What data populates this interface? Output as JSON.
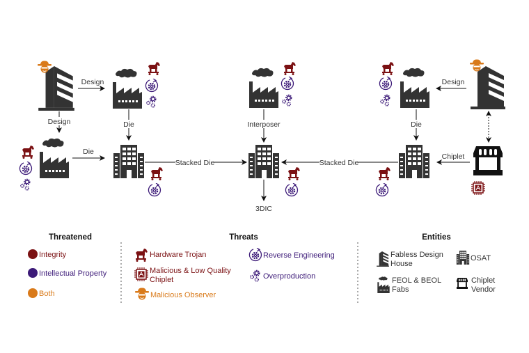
{
  "colors": {
    "integrity": "#7b1113",
    "ip": "#3c1a78",
    "both": "#d97a1a",
    "entity": "#333333"
  },
  "flow": {
    "design_top_left": "Design",
    "design_down_left": "Design",
    "die_bottom_left": "Die",
    "die_down_left": "Die",
    "stacked_die_left": "Stacked Die",
    "interposer": "Interposer",
    "output": "3DIC",
    "stacked_die_right": "Stacked Die",
    "die_down_right": "Die",
    "design_right": "Design",
    "chiplet": "Chiplet"
  },
  "legend": {
    "threatened": {
      "title": "Threatened",
      "items": [
        {
          "label": "Integrity",
          "color": "#7b1113"
        },
        {
          "label": "Intellectual Property",
          "color": "#3c1a78"
        },
        {
          "label": "Both",
          "color": "#d97a1a"
        }
      ]
    },
    "threats": {
      "title": "Threats",
      "items": [
        {
          "label": "Hardware Trojan",
          "icon": "trojan-horse-icon"
        },
        {
          "label_line1": "Malicious & Low Quality",
          "label_line2": "Chiplet",
          "icon": "chip-icon"
        },
        {
          "label": "Malicious Observer",
          "icon": "observer-icon"
        },
        {
          "label": "Reverse Engineering",
          "icon": "reverse-engineering-icon"
        },
        {
          "label": "Overproduction",
          "icon": "gears-icon"
        }
      ]
    },
    "entities": {
      "title": "Entities",
      "items": [
        {
          "label_line1": "Fabless Design",
          "label_line2": "House",
          "icon": "design-house-icon"
        },
        {
          "label": "OSAT",
          "icon": "osat-building-icon"
        },
        {
          "label_line1": "FEOL & BEOL",
          "label_line2": "Fabs",
          "icon": "factory-icon"
        },
        {
          "label_line1": "Chiplet",
          "label_line2": "Vendor",
          "icon": "store-icon"
        }
      ]
    }
  }
}
